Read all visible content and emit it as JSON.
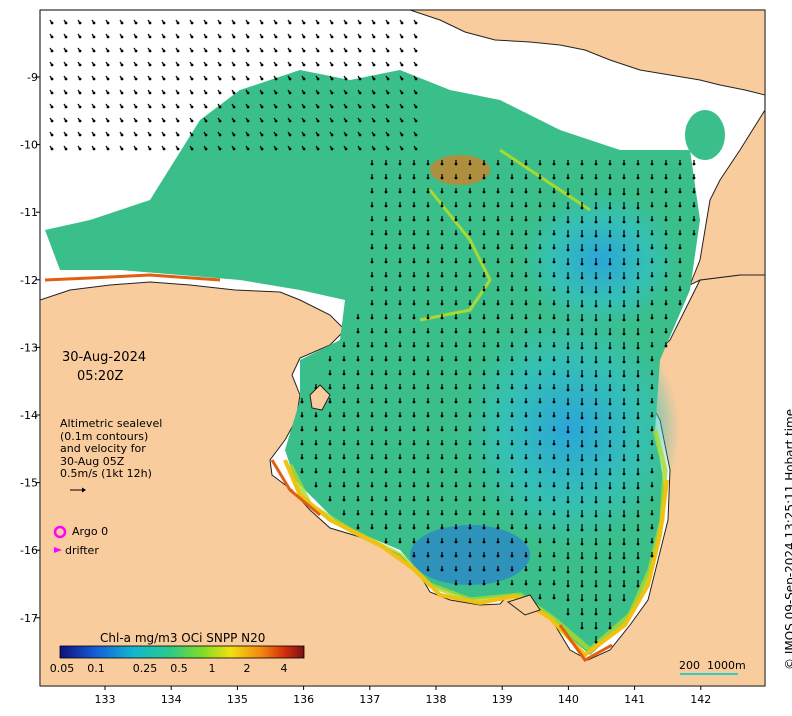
{
  "date": "30-Aug-2024",
  "time": "05:20Z",
  "altimetry_legend": [
    "Altimetric sealevel",
    "(0.1m contours)",
    "and velocity for",
    "30-Aug 05Z",
    "0.5m/s (1kt 12h)"
  ],
  "argo_label": "Argo 0",
  "drifter_label": "drifter",
  "colorbar": {
    "title": "Chl-a mg/m3 OCi SNPP N20",
    "ticks": [
      "0.05",
      "0.1",
      "0.25",
      "0.5",
      "1",
      "2",
      "4"
    ]
  },
  "scale_bar_label": "200  1000m",
  "credit": "© IMOS 09-Sep-2024 13:25:11 Hobart time",
  "lon_ticks": [
    "133",
    "134",
    "135",
    "136",
    "137",
    "138",
    "139",
    "140",
    "141",
    "142"
  ],
  "lat_ticks": [
    "-9",
    "-10",
    "-11",
    "-12",
    "-13",
    "-14",
    "-15",
    "-16",
    "-17"
  ],
  "colors": {
    "land": "#f9cc9e",
    "argo": "#ff00ff",
    "drifter": "#ff00ff",
    "scale_bar": "#33ccbb"
  }
}
